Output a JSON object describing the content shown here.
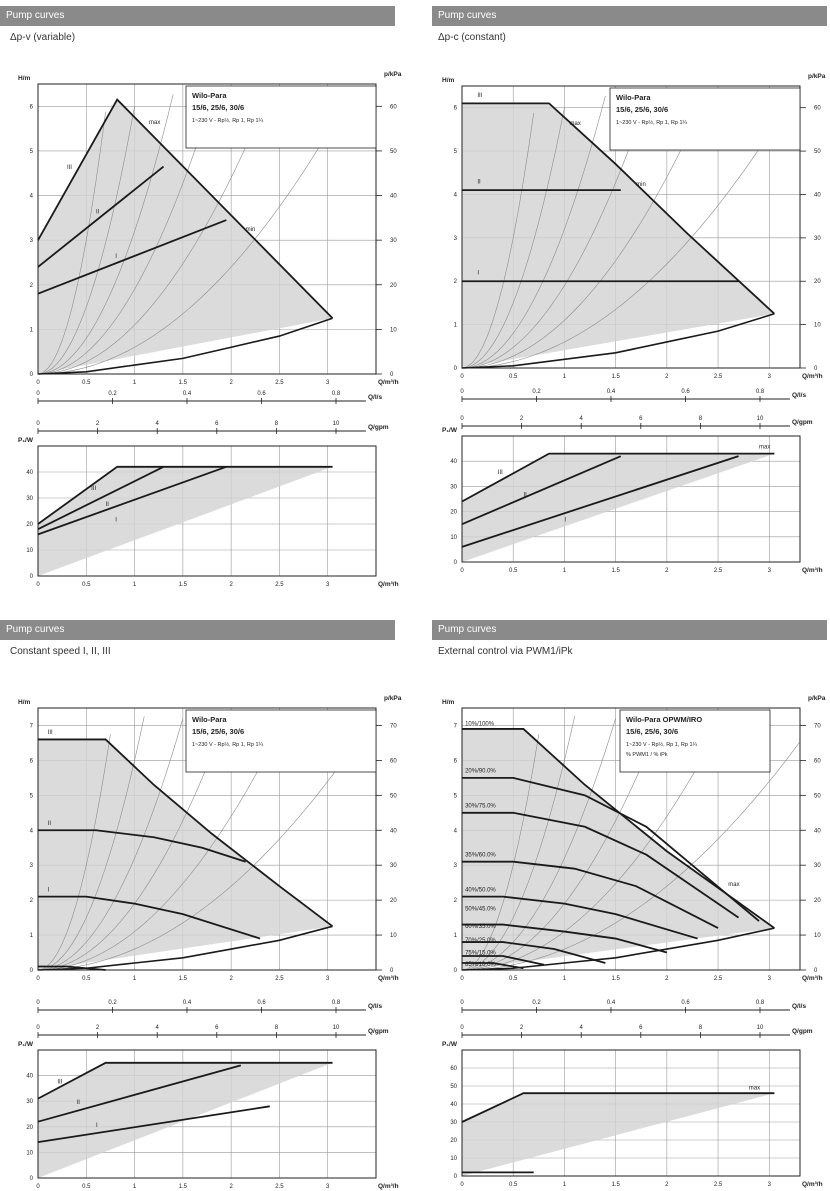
{
  "quadrants": [
    {
      "header": "Pump curves",
      "subtitle": "Δp-v (variable)",
      "legend": {
        "line1": "Wilo-Para",
        "line2": "15/6, 25/6, 30/6",
        "line3": "1~230 V - Rp½, Rp 1, Rp 1¼"
      },
      "main": {
        "type": "line",
        "x_label": "Q/m³/h",
        "y_label": "H/m",
        "y2_label": "p/kPa",
        "xlim": [
          0,
          3.5
        ],
        "ylim": [
          0,
          6.5
        ],
        "x_ticks": [
          0,
          0.5,
          1.0,
          1.5,
          2.0,
          2.5,
          3.0
        ],
        "y_ticks": [
          0,
          1,
          2,
          3,
          4,
          5,
          6
        ],
        "y2_ticks": [
          0,
          10,
          20,
          30,
          40,
          50,
          60
        ],
        "series": [
          {
            "name": "III",
            "x": [
              0,
              0.82,
              3.05
            ],
            "y": [
              3.0,
              6.15,
              1.25
            ]
          },
          {
            "name": "II",
            "x": [
              0,
              1.3
            ],
            "y": [
              2.4,
              4.65
            ]
          },
          {
            "name": "I",
            "x": [
              0,
              1.95
            ],
            "y": [
              1.8,
              3.45
            ]
          },
          {
            "name": "",
            "x": [
              0,
              0.5,
              1.0,
              1.5,
              2.0,
              2.5,
              3.05
            ],
            "y": [
              0,
              0.05,
              0.2,
              0.35,
              0.6,
              0.85,
              1.25
            ]
          }
        ],
        "labels": [
          {
            "text": "III",
            "x": 0.3,
            "y": 4.6
          },
          {
            "text": "II",
            "x": 0.6,
            "y": 3.6
          },
          {
            "text": "I",
            "x": 0.8,
            "y": 2.6
          },
          {
            "text": "max",
            "x": 1.15,
            "y": 5.6
          },
          {
            "text": "min",
            "x": 2.15,
            "y": 3.2
          }
        ]
      },
      "axis_qls": {
        "label": "Q/l/s",
        "ticks": [
          "0",
          "0.2",
          "0.4",
          "0.6",
          "0.8"
        ]
      },
      "axis_qgpm": {
        "label": "Q/gpm",
        "ticks": [
          "0",
          "2",
          "4",
          "6",
          "8",
          "10"
        ]
      },
      "power": {
        "x_label": "Q/m³/h",
        "y_label": "P₁/W",
        "xlim": [
          0,
          3.5
        ],
        "ylim": [
          0,
          50
        ],
        "x_ticks": [
          0,
          0.5,
          1.0,
          1.5,
          2.0,
          2.5,
          3.0
        ],
        "y_ticks": [
          0,
          10,
          20,
          30,
          40
        ],
        "series": [
          {
            "name": "III",
            "x": [
              0,
              0.82,
              3.05
            ],
            "y": [
              20,
              42,
              42
            ]
          },
          {
            "name": "II",
            "x": [
              0,
              1.3
            ],
            "y": [
              18,
              42
            ]
          },
          {
            "name": "I",
            "x": [
              0,
              1.95
            ],
            "y": [
              16,
              42
            ]
          }
        ],
        "labels": [
          {
            "text": "III",
            "x": 0.55,
            "y": 33
          },
          {
            "text": "II",
            "x": 0.7,
            "y": 27
          },
          {
            "text": "I",
            "x": 0.8,
            "y": 21
          }
        ]
      }
    },
    {
      "header": "Pump curves",
      "subtitle": "Δp-c (constant)",
      "legend": {
        "line1": "Wilo-Para",
        "line2": "15/6, 25/6, 30/6",
        "line3": "1~230 V - Rp½, Rp 1, Rp 1¼"
      },
      "main": {
        "type": "line",
        "x_label": "Q/m³/h",
        "y_label": "H/m",
        "y2_label": "p/kPa",
        "xlim": [
          0,
          3.3
        ],
        "ylim": [
          0,
          6.5
        ],
        "x_ticks": [
          0,
          0.5,
          1.0,
          1.5,
          2.0,
          2.5,
          3.0
        ],
        "y_ticks": [
          0,
          1,
          2,
          3,
          4,
          5,
          6
        ],
        "y2_ticks": [
          0,
          10,
          20,
          30,
          40,
          50,
          60
        ],
        "series": [
          {
            "name": "III",
            "x": [
              0,
              0.85,
              1.5,
              2.2,
              3.05
            ],
            "y": [
              6.1,
              6.1,
              4.7,
              3.1,
              1.25
            ]
          },
          {
            "name": "II",
            "x": [
              0,
              1.55
            ],
            "y": [
              4.1,
              4.1
            ]
          },
          {
            "name": "I",
            "x": [
              0,
              2.7
            ],
            "y": [
              2.0,
              2.0
            ]
          },
          {
            "name": "",
            "x": [
              0,
              0.5,
              1.0,
              1.5,
              2.0,
              2.5,
              3.05
            ],
            "y": [
              0,
              0.05,
              0.2,
              0.35,
              0.6,
              0.85,
              1.25
            ]
          }
        ],
        "labels": [
          {
            "text": "III",
            "x": 0.15,
            "y": 6.25
          },
          {
            "text": "II",
            "x": 0.15,
            "y": 4.25
          },
          {
            "text": "I",
            "x": 0.15,
            "y": 2.15
          },
          {
            "text": "max",
            "x": 1.05,
            "y": 5.6
          },
          {
            "text": "min",
            "x": 1.7,
            "y": 4.2
          }
        ]
      },
      "axis_qls": {
        "label": "Q/l/s",
        "ticks": [
          "0",
          "0.2",
          "0.4",
          "0.6",
          "0.8"
        ]
      },
      "axis_qgpm": {
        "label": "Q/gpm",
        "ticks": [
          "0",
          "2",
          "4",
          "6",
          "8",
          "10"
        ]
      },
      "power": {
        "x_label": "Q/m³/h",
        "y_label": "P₁/W",
        "xlim": [
          0,
          3.3
        ],
        "ylim": [
          0,
          50
        ],
        "x_ticks": [
          0,
          0.5,
          1.0,
          1.5,
          2.0,
          2.5,
          3.0
        ],
        "y_ticks": [
          0,
          10,
          20,
          30,
          40
        ],
        "series": [
          {
            "name": "III",
            "x": [
              0,
              0.85,
              3.05
            ],
            "y": [
              24,
              43,
              43
            ]
          },
          {
            "name": "II",
            "x": [
              0,
              1.55
            ],
            "y": [
              15,
              42
            ]
          },
          {
            "name": "I",
            "x": [
              0,
              2.7
            ],
            "y": [
              6,
              42
            ]
          }
        ],
        "labels": [
          {
            "text": "III",
            "x": 0.35,
            "y": 35
          },
          {
            "text": "II",
            "x": 0.6,
            "y": 26
          },
          {
            "text": "I",
            "x": 1.0,
            "y": 16
          },
          {
            "text": "max",
            "x": 2.9,
            "y": 45
          }
        ]
      }
    },
    {
      "header": "Pump curves",
      "subtitle": "Constant speed I, II, III",
      "legend": {
        "line1": "Wilo-Para",
        "line2": "15/6, 25/6, 30/6",
        "line3": "1~230 V - Rp½, Rp 1, Rp 1¼"
      },
      "main": {
        "type": "line",
        "x_label": "Q/m³/h",
        "y_label": "H/m",
        "y2_label": "p/kPa",
        "xlim": [
          0,
          3.5
        ],
        "ylim": [
          0,
          7.5
        ],
        "x_ticks": [
          0,
          0.5,
          1.0,
          1.5,
          2.0,
          2.5,
          3.0
        ],
        "y_ticks": [
          0,
          1,
          2,
          3,
          4,
          5,
          6,
          7
        ],
        "y2_ticks": [
          0,
          10,
          20,
          30,
          40,
          50,
          60,
          70
        ],
        "series": [
          {
            "name": "III",
            "x": [
              0,
              0.7,
              1.2,
              1.8,
              2.5,
              3.05
            ],
            "y": [
              6.6,
              6.6,
              5.3,
              3.9,
              2.4,
              1.25
            ]
          },
          {
            "name": "II",
            "x": [
              0,
              0.6,
              1.2,
              1.7,
              2.15
            ],
            "y": [
              4.0,
              4.0,
              3.8,
              3.5,
              3.1
            ]
          },
          {
            "name": "I",
            "x": [
              0,
              0.5,
              1.0,
              1.5,
              2.3
            ],
            "y": [
              2.1,
              2.1,
              1.9,
              1.6,
              0.9
            ]
          },
          {
            "name": "",
            "x": [
              0,
              0.3,
              0.7
            ],
            "y": [
              0.1,
              0.1,
              0.0
            ]
          },
          {
            "name": "",
            "x": [
              0,
              0.5,
              1.0,
              1.5,
              2.0,
              2.5,
              3.05
            ],
            "y": [
              0,
              0.05,
              0.2,
              0.35,
              0.6,
              0.85,
              1.25
            ]
          }
        ],
        "labels": [
          {
            "text": "III",
            "x": 0.1,
            "y": 6.75
          },
          {
            "text": "II",
            "x": 0.1,
            "y": 4.15
          },
          {
            "text": "I",
            "x": 0.1,
            "y": 2.25
          }
        ]
      },
      "axis_qls": {
        "label": "Q/l/s",
        "ticks": [
          "0",
          "0.2",
          "0.4",
          "0.6",
          "0.8"
        ]
      },
      "axis_qgpm": {
        "label": "Q/gpm",
        "ticks": [
          "0",
          "2",
          "4",
          "6",
          "8",
          "10"
        ]
      },
      "power": {
        "x_label": "Q/m³/h",
        "y_label": "P₁/W",
        "xlim": [
          0,
          3.5
        ],
        "ylim": [
          0,
          50
        ],
        "x_ticks": [
          0,
          0.5,
          1.0,
          1.5,
          2.0,
          2.5,
          3.0
        ],
        "y_ticks": [
          0,
          10,
          20,
          30,
          40
        ],
        "series": [
          {
            "name": "III",
            "x": [
              0,
              0.7,
              3.05
            ],
            "y": [
              31,
              45,
              45
            ]
          },
          {
            "name": "II",
            "x": [
              0,
              2.1
            ],
            "y": [
              22,
              44
            ]
          },
          {
            "name": "I",
            "x": [
              0,
              2.4
            ],
            "y": [
              14,
              28
            ]
          }
        ],
        "labels": [
          {
            "text": "III",
            "x": 0.2,
            "y": 37
          },
          {
            "text": "II",
            "x": 0.4,
            "y": 29
          },
          {
            "text": "I",
            "x": 0.6,
            "y": 20
          }
        ]
      }
    },
    {
      "header": "Pump curves",
      "subtitle": "External control via PWM1/iPk",
      "legend": {
        "line1": "Wilo-Para OPWM/IRO",
        "line2": "15/6, 25/6, 30/6",
        "line3": "1~230 V - Rp½, Rp 1, Rp 1¼",
        "line4": "% PWM1 / % iPk"
      },
      "main": {
        "type": "line",
        "x_label": "Q/m³/h",
        "y_label": "H/m",
        "y2_label": "p/kPa",
        "xlim": [
          0,
          3.3
        ],
        "ylim": [
          0,
          7.5
        ],
        "x_ticks": [
          0,
          0.5,
          1.0,
          1.5,
          2.0,
          2.5,
          3.0
        ],
        "y_ticks": [
          0,
          1,
          2,
          3,
          4,
          5,
          6,
          7
        ],
        "y2_ticks": [
          0,
          10,
          20,
          30,
          40,
          50,
          60,
          70
        ],
        "series": [
          {
            "name": "",
            "x": [
              0,
              0.6,
              1.2,
              2.0,
              3.05
            ],
            "y": [
              6.9,
              6.9,
              5.3,
              3.4,
              1.2
            ]
          },
          {
            "name": "",
            "x": [
              0,
              0.5,
              1.2,
              1.8,
              2.9
            ],
            "y": [
              5.5,
              5.5,
              5.0,
              4.1,
              1.4
            ]
          },
          {
            "name": "",
            "x": [
              0,
              0.5,
              1.2,
              1.8,
              2.7
            ],
            "y": [
              4.5,
              4.5,
              4.1,
              3.3,
              1.5
            ]
          },
          {
            "name": "",
            "x": [
              0,
              0.5,
              1.1,
              1.7,
              2.5
            ],
            "y": [
              3.1,
              3.1,
              2.9,
              2.4,
              1.2
            ]
          },
          {
            "name": "",
            "x": [
              0,
              0.4,
              1.0,
              1.5,
              2.3
            ],
            "y": [
              2.1,
              2.1,
              1.9,
              1.6,
              0.9
            ]
          },
          {
            "name": "",
            "x": [
              0,
              0.4,
              1.0,
              1.5,
              2.0
            ],
            "y": [
              1.3,
              1.3,
              1.1,
              0.9,
              0.5
            ]
          },
          {
            "name": "",
            "x": [
              0,
              0.4,
              0.9,
              1.4
            ],
            "y": [
              0.8,
              0.8,
              0.6,
              0.2
            ]
          },
          {
            "name": "",
            "x": [
              0,
              0.4,
              0.8
            ],
            "y": [
              0.4,
              0.4,
              0.15
            ]
          },
          {
            "name": "",
            "x": [
              0,
              0.3,
              0.6
            ],
            "y": [
              0.2,
              0.2,
              0.05
            ]
          },
          {
            "name": "",
            "x": [
              0,
              0.5,
              1.0,
              1.5,
              2.0,
              2.5,
              3.05
            ],
            "y": [
              0,
              0.05,
              0.2,
              0.35,
              0.6,
              0.85,
              1.2
            ]
          }
        ],
        "labels": [
          {
            "text": "10%/100%",
            "x": 0.03,
            "y": 7.0
          },
          {
            "text": "20%/90.0%",
            "x": 0.03,
            "y": 5.65
          },
          {
            "text": "30%/75.0%",
            "x": 0.03,
            "y": 4.65
          },
          {
            "text": "35%/60.0%",
            "x": 0.03,
            "y": 3.25
          },
          {
            "text": "40%/50.0%",
            "x": 0.03,
            "y": 2.25
          },
          {
            "text": "50%/45.0%",
            "x": 0.03,
            "y": 1.7
          },
          {
            "text": "60%/35.0%",
            "x": 0.03,
            "y": 1.2
          },
          {
            "text": "70%/25.0%",
            "x": 0.03,
            "y": 0.8
          },
          {
            "text": "75%/15.0%",
            "x": 0.03,
            "y": 0.45
          },
          {
            "text": "85%/10.0%",
            "x": 0.03,
            "y": 0.12
          },
          {
            "text": "max",
            "x": 2.6,
            "y": 2.4
          }
        ]
      },
      "axis_qls": {
        "label": "Q/l/s",
        "ticks": [
          "0",
          "0.2",
          "0.4",
          "0.6",
          "0.8"
        ]
      },
      "axis_qgpm": {
        "label": "Q/gpm",
        "ticks": [
          "0",
          "2",
          "4",
          "6",
          "8",
          "10"
        ]
      },
      "power": {
        "x_label": "Q/m³/h",
        "y_label": "P₁/W",
        "xlim": [
          0,
          3.3
        ],
        "ylim": [
          0,
          70
        ],
        "x_ticks": [
          0,
          0.5,
          1.0,
          1.5,
          2.0,
          2.5,
          3.0
        ],
        "y_ticks": [
          0,
          10,
          20,
          30,
          40,
          50,
          60
        ],
        "series": [
          {
            "name": "",
            "x": [
              0,
              0.6,
              3.05
            ],
            "y": [
              30,
              46,
              46
            ]
          },
          {
            "name": "",
            "x": [
              0,
              0.7
            ],
            "y": [
              2,
              2
            ]
          }
        ],
        "labels": [
          {
            "text": "max",
            "x": 2.8,
            "y": 48
          }
        ]
      }
    }
  ]
}
